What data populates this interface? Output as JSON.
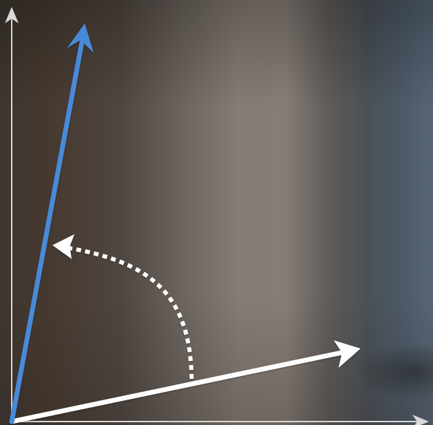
{
  "colors": {
    "axis": "#d9d9d9",
    "reference_vector": "#ffffff",
    "rotated_vector": "#4a8ad8",
    "rotation_arc": "#ffffff"
  },
  "icons": {
    "y_axis_arrow": "arrow-up-icon",
    "x_axis_arrow": "arrow-right-icon",
    "reference_vector_head": "arrow-head-icon",
    "rotated_vector_head": "arrow-head-icon",
    "rotation_arc_head": "arrow-head-icon"
  }
}
